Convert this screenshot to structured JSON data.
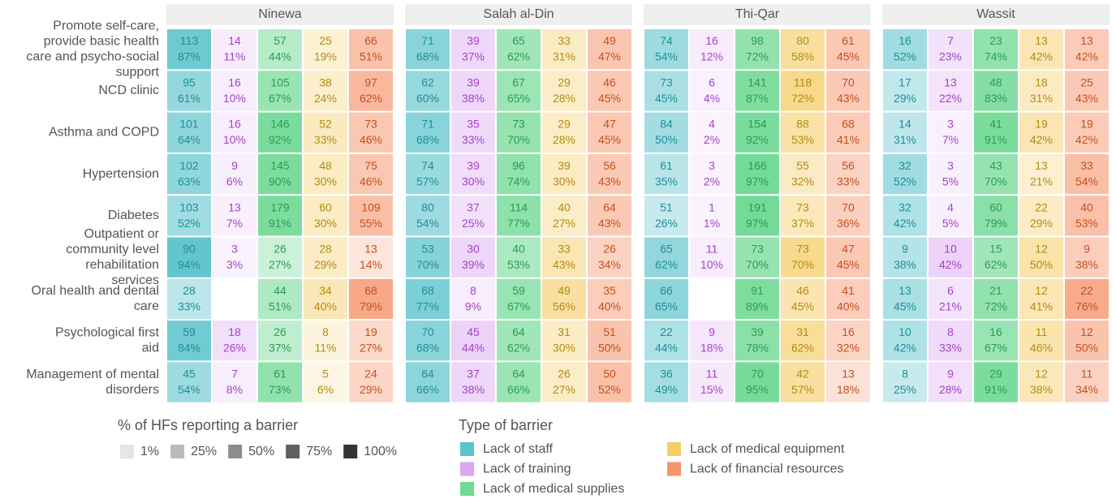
{
  "chart_data": {
    "type": "heatmap",
    "row_labels": [
      [
        "Promote self-care,",
        "provide basic health",
        "care and psycho-social",
        "support"
      ],
      [
        "NCD clinic"
      ],
      [
        "Asthma and COPD"
      ],
      [
        "Hypertension"
      ],
      [
        "Diabetes"
      ],
      [
        "Outpatient or",
        "community level",
        "rehabilitation",
        "services"
      ],
      [
        "Oral health and dental",
        "care"
      ],
      [
        "Psychological first",
        "aid"
      ],
      [
        "Management of mental",
        "disorders"
      ]
    ],
    "series": [
      {
        "name": "Lack of staff",
        "color": "#5bc3cb",
        "label_color": "#1e8f99"
      },
      {
        "name": "Lack of training",
        "color": "#dba6f2",
        "label_color": "#a543c9"
      },
      {
        "name": "Lack of medical supplies",
        "color": "#70d994",
        "label_color": "#2b9c55"
      },
      {
        "name": "Lack of medical equipment",
        "color": "#f5cd66",
        "label_color": "#b58a12"
      },
      {
        "name": "Lack of financial resources",
        "color": "#f6946c",
        "label_color": "#c4501f"
      }
    ],
    "panels": [
      {
        "title": "Ninewa",
        "counts": [
          [
            113,
            14,
            57,
            25,
            66
          ],
          [
            95,
            16,
            105,
            38,
            97
          ],
          [
            101,
            16,
            146,
            52,
            73
          ],
          [
            102,
            9,
            145,
            48,
            75
          ],
          [
            103,
            13,
            179,
            60,
            109
          ],
          [
            90,
            3,
            26,
            28,
            13
          ],
          [
            28,
            null,
            44,
            34,
            68
          ],
          [
            59,
            18,
            26,
            8,
            19
          ],
          [
            45,
            7,
            61,
            5,
            24
          ]
        ],
        "percents": [
          [
            87,
            11,
            44,
            19,
            51
          ],
          [
            61,
            10,
            67,
            24,
            62
          ],
          [
            64,
            10,
            92,
            33,
            46
          ],
          [
            63,
            6,
            90,
            30,
            46
          ],
          [
            52,
            7,
            91,
            30,
            55
          ],
          [
            94,
            3,
            27,
            29,
            14
          ],
          [
            33,
            null,
            51,
            40,
            79
          ],
          [
            84,
            26,
            37,
            11,
            27
          ],
          [
            54,
            8,
            73,
            6,
            29
          ]
        ],
        "percent_labels": [
          [
            "87%",
            "11%",
            "44%",
            "19%",
            "51%"
          ],
          [
            "61%",
            "10%",
            "67%",
            "24%",
            "62%"
          ],
          [
            "64%",
            "10%",
            "92%",
            "33%",
            "46%"
          ],
          [
            "63%",
            "6%",
            "90%",
            "30%",
            "46%"
          ],
          [
            "52%",
            "7%",
            "91%",
            "30%",
            "55%"
          ],
          [
            "94%",
            "3%",
            "27%",
            "29%",
            "14%"
          ],
          [
            "33%",
            null,
            "51%",
            "40%",
            "79%"
          ],
          [
            "84%",
            "26%",
            "37%",
            "11%",
            "27%"
          ],
          [
            "54%",
            "8%",
            "73%",
            "6%",
            "29%"
          ]
        ]
      },
      {
        "title": "Salah al-Din",
        "counts": [
          [
            71,
            39,
            65,
            33,
            49
          ],
          [
            62,
            39,
            67,
            29,
            46
          ],
          [
            71,
            35,
            73,
            29,
            47
          ],
          [
            74,
            39,
            96,
            39,
            56
          ],
          [
            80,
            37,
            114,
            40,
            64
          ],
          [
            53,
            30,
            40,
            33,
            26
          ],
          [
            68,
            8,
            59,
            49,
            35
          ],
          [
            70,
            45,
            64,
            31,
            51
          ],
          [
            64,
            37,
            64,
            26,
            50
          ]
        ],
        "percents": [
          [
            68,
            37,
            62,
            31,
            47
          ],
          [
            60,
            38,
            65,
            28,
            45
          ],
          [
            68,
            33,
            70,
            28,
            45
          ],
          [
            57,
            30,
            74,
            30,
            43
          ],
          [
            54,
            25,
            77,
            27,
            43
          ],
          [
            70,
            39,
            53,
            43,
            34
          ],
          [
            77,
            9,
            67,
            56,
            40
          ],
          [
            68,
            44,
            62,
            30,
            50
          ],
          [
            66,
            38,
            66,
            27,
            52
          ]
        ],
        "percent_labels": [
          [
            "68%",
            "37%",
            "62%",
            "31%",
            "47%"
          ],
          [
            "60%",
            "38%",
            "65%",
            "28%",
            "45%"
          ],
          [
            "68%",
            "33%",
            "70%",
            "28%",
            "45%"
          ],
          [
            "57%",
            "30%",
            "74%",
            "30%",
            "43%"
          ],
          [
            "54%",
            "25%",
            "77%",
            "27%",
            "43%"
          ],
          [
            "70%",
            "39%",
            "53%",
            "43%",
            "34%"
          ],
          [
            "77%",
            "9%",
            "67%",
            "56%",
            "40%"
          ],
          [
            "68%",
            "44%",
            "62%",
            "30%",
            "50%"
          ],
          [
            "66%",
            "38%",
            "66%",
            "27%",
            "52%"
          ]
        ]
      },
      {
        "title": "Thi-Qar",
        "counts": [
          [
            74,
            16,
            98,
            80,
            61
          ],
          [
            73,
            6,
            141,
            118,
            70
          ],
          [
            84,
            4,
            154,
            88,
            68
          ],
          [
            61,
            3,
            166,
            55,
            56
          ],
          [
            51,
            1,
            191,
            73,
            70
          ],
          [
            65,
            11,
            73,
            73,
            47
          ],
          [
            66,
            null,
            91,
            46,
            41
          ],
          [
            22,
            9,
            39,
            31,
            16
          ],
          [
            36,
            11,
            70,
            42,
            13
          ]
        ],
        "percents": [
          [
            54,
            12,
            72,
            58,
            45
          ],
          [
            45,
            4,
            87,
            72,
            43
          ],
          [
            50,
            2,
            92,
            53,
            41
          ],
          [
            35,
            2,
            97,
            32,
            33
          ],
          [
            26,
            1,
            97,
            37,
            36
          ],
          [
            62,
            10,
            70,
            70,
            45
          ],
          [
            65,
            null,
            89,
            45,
            40
          ],
          [
            44,
            18,
            78,
            62,
            32
          ],
          [
            49,
            15,
            95,
            57,
            18
          ]
        ],
        "percent_labels": [
          [
            "54%",
            "12%",
            "72%",
            "58%",
            "45%"
          ],
          [
            "45%",
            "4%",
            "87%",
            "72%",
            "43%"
          ],
          [
            "50%",
            "2%",
            "92%",
            "53%",
            "41%"
          ],
          [
            "35%",
            "2%",
            "97%",
            "32%",
            "33%"
          ],
          [
            "26%",
            "1%",
            "97%",
            "37%",
            "36%"
          ],
          [
            "62%",
            "10%",
            "70%",
            "70%",
            "45%"
          ],
          [
            "65%",
            null,
            "89%",
            "45%",
            "40%"
          ],
          [
            "44%",
            "18%",
            "78%",
            "62%",
            "32%"
          ],
          [
            "49%",
            "15%",
            "95%",
            "57%",
            "18%"
          ]
        ]
      },
      {
        "title": "Wassit",
        "counts": [
          [
            16,
            7,
            23,
            13,
            13
          ],
          [
            17,
            13,
            48,
            18,
            25
          ],
          [
            14,
            3,
            41,
            19,
            19
          ],
          [
            32,
            3,
            43,
            13,
            33
          ],
          [
            32,
            4,
            60,
            22,
            40
          ],
          [
            9,
            10,
            15,
            12,
            9
          ],
          [
            13,
            6,
            21,
            12,
            22
          ],
          [
            10,
            8,
            16,
            11,
            12
          ],
          [
            8,
            9,
            29,
            12,
            11
          ]
        ],
        "percents": [
          [
            52,
            23,
            74,
            42,
            42
          ],
          [
            29,
            22,
            83,
            31,
            43
          ],
          [
            31,
            7,
            91,
            42,
            42
          ],
          [
            52,
            5,
            70,
            21,
            54
          ],
          [
            42,
            5,
            79,
            29,
            53
          ],
          [
            38,
            42,
            62,
            50,
            38
          ],
          [
            45,
            21,
            72,
            41,
            76
          ],
          [
            42,
            33,
            67,
            46,
            50
          ],
          [
            25,
            28,
            91,
            38,
            34
          ]
        ],
        "percent_labels": [
          [
            "52%",
            "23%",
            "74%",
            "42%",
            "42%"
          ],
          [
            "29%",
            "22%",
            "83%",
            "31%",
            "43%"
          ],
          [
            "31%",
            "7%",
            "91%",
            "42%",
            "42%"
          ],
          [
            "52%",
            "5%",
            "70%",
            "21%",
            "54%"
          ],
          [
            "42%",
            "5%",
            "79%",
            "29%",
            "53%"
          ],
          [
            "38%",
            "42%",
            "62%",
            "50%",
            "38%"
          ],
          [
            "45%",
            "21%",
            "72%",
            "41%",
            "76%"
          ],
          [
            "42%",
            "33%",
            "67%",
            "46%",
            "50%"
          ],
          [
            "25%",
            "28%",
            "91%",
            "38%",
            "34%"
          ]
        ]
      }
    ],
    "opacity_legend": {
      "title": "% of HFs reporting a barrier",
      "color": "#333333",
      "levels": [
        {
          "value": 1,
          "label": "1%"
        },
        {
          "value": 25,
          "label": "25%"
        },
        {
          "value": 50,
          "label": "50%"
        },
        {
          "value": 75,
          "label": "75%"
        },
        {
          "value": 100,
          "label": "100%"
        }
      ]
    },
    "color_legend_title": "Type of barrier"
  }
}
